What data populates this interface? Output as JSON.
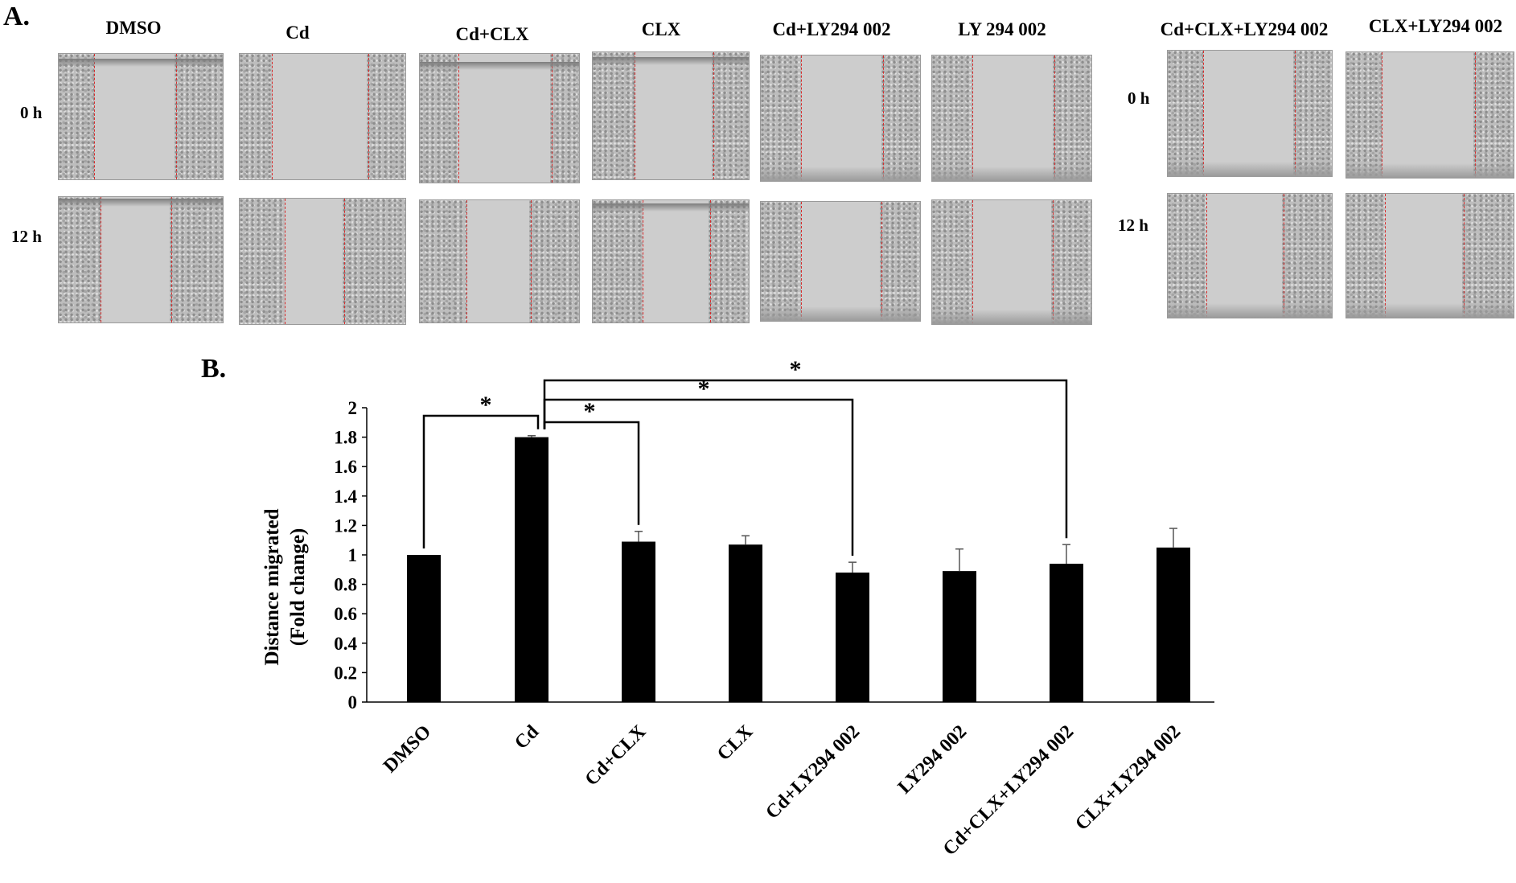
{
  "panel_a": {
    "label": "A.",
    "row_labels_left": [
      "0 h",
      "12 h"
    ],
    "row_labels_right": [
      "0 h",
      "12 h"
    ],
    "columns": [
      "DMSO",
      "Cd",
      "Cd+CLX",
      "CLX",
      "Cd+LY294 002",
      "LY 294 002",
      "Cd+CLX+LY294 002",
      "CLX+LY294 002"
    ]
  },
  "panel_b": {
    "label": "B."
  },
  "chart_data": {
    "type": "bar",
    "title": "",
    "ylabel_line1": "Distance migrated",
    "ylabel_line2": "(Fold change)",
    "xlabel": "",
    "categories": [
      "DMSO",
      "Cd",
      "Cd+CLX",
      "CLX",
      "Cd+LY294 002",
      "LY294 002",
      "Cd+CLX+LY294 002",
      "CLX+LY294 002"
    ],
    "values": [
      1.0,
      1.8,
      1.09,
      1.07,
      0.88,
      0.89,
      0.94,
      1.05
    ],
    "errors": [
      0.0,
      0.01,
      0.07,
      0.06,
      0.07,
      0.15,
      0.13,
      0.13
    ],
    "ylim": [
      0,
      2
    ],
    "yticks": [
      "0",
      "0.2",
      "0.4",
      "0.6",
      "0.8",
      "1",
      "1.2",
      "1.4",
      "1.6",
      "1.8",
      "2"
    ],
    "bar_color": "#000000",
    "grid": false,
    "significance": [
      {
        "from": 0,
        "to": 1,
        "label": "*"
      },
      {
        "from": 1,
        "to": 2,
        "label": "*"
      },
      {
        "from": 1,
        "to": 4,
        "label": "*"
      },
      {
        "from": 1,
        "to": 6,
        "label": "*"
      }
    ]
  }
}
